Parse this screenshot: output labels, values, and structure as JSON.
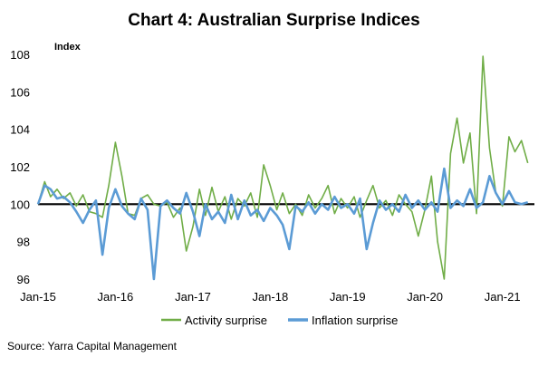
{
  "chart_data": {
    "type": "line",
    "title": "Chart 4: Australian Surprise Indices",
    "ylabel": "Index",
    "xlabel": "",
    "ylim": [
      96,
      108
    ],
    "yticks": [
      96,
      98,
      100,
      102,
      104,
      106,
      108
    ],
    "x_ticks": [
      "Jan-15",
      "Jan-16",
      "Jan-17",
      "Jan-18",
      "Jan-19",
      "Jan-20",
      "Jan-21"
    ],
    "x_range": [
      "Jan-15",
      "Jun-21"
    ],
    "grid": false,
    "reference_line": 100,
    "legend": "bottom",
    "series": [
      {
        "name": "Activity surprise",
        "color": "#70ad47",
        "points": [
          [
            "2015-01",
            100.0
          ],
          [
            "2015-02",
            101.2
          ],
          [
            "2015-03",
            100.4
          ],
          [
            "2015-04",
            100.8
          ],
          [
            "2015-05",
            100.3
          ],
          [
            "2015-06",
            100.6
          ],
          [
            "2015-07",
            99.9
          ],
          [
            "2015-08",
            100.5
          ],
          [
            "2015-09",
            99.6
          ],
          [
            "2015-10",
            99.5
          ],
          [
            "2015-11",
            99.3
          ],
          [
            "2015-12",
            101.0
          ],
          [
            "2016-01",
            103.3
          ],
          [
            "2016-02",
            101.5
          ],
          [
            "2016-03",
            99.5
          ],
          [
            "2016-04",
            99.4
          ],
          [
            "2016-05",
            100.3
          ],
          [
            "2016-06",
            100.5
          ],
          [
            "2016-07",
            100.0
          ],
          [
            "2016-08",
            99.9
          ],
          [
            "2016-09",
            100.1
          ],
          [
            "2016-10",
            99.3
          ],
          [
            "2016-11",
            99.8
          ],
          [
            "2016-12",
            97.5
          ],
          [
            "2017-01",
            98.8
          ],
          [
            "2017-02",
            100.8
          ],
          [
            "2017-03",
            99.4
          ],
          [
            "2017-04",
            100.9
          ],
          [
            "2017-05",
            99.6
          ],
          [
            "2017-06",
            100.4
          ],
          [
            "2017-07",
            99.2
          ],
          [
            "2017-08",
            100.3
          ],
          [
            "2017-09",
            99.9
          ],
          [
            "2017-10",
            100.6
          ],
          [
            "2017-11",
            99.3
          ],
          [
            "2017-12",
            102.1
          ],
          [
            "2018-01",
            101.0
          ],
          [
            "2018-02",
            99.7
          ],
          [
            "2018-03",
            100.6
          ],
          [
            "2018-04",
            99.5
          ],
          [
            "2018-05",
            100.0
          ],
          [
            "2018-06",
            99.4
          ],
          [
            "2018-07",
            100.5
          ],
          [
            "2018-08",
            99.8
          ],
          [
            "2018-09",
            100.3
          ],
          [
            "2018-10",
            101.0
          ],
          [
            "2018-11",
            99.5
          ],
          [
            "2018-12",
            100.3
          ],
          [
            "2019-01",
            99.8
          ],
          [
            "2019-02",
            100.4
          ],
          [
            "2019-03",
            99.3
          ],
          [
            "2019-04",
            100.2
          ],
          [
            "2019-05",
            101.0
          ],
          [
            "2019-06",
            99.8
          ],
          [
            "2019-07",
            100.2
          ],
          [
            "2019-08",
            99.4
          ],
          [
            "2019-09",
            100.5
          ],
          [
            "2019-10",
            100.0
          ],
          [
            "2019-11",
            99.6
          ],
          [
            "2019-12",
            98.3
          ],
          [
            "2020-01",
            99.7
          ],
          [
            "2020-02",
            101.5
          ],
          [
            "2020-03",
            98.0
          ],
          [
            "2020-04",
            96.0
          ],
          [
            "2020-05",
            102.7
          ],
          [
            "2020-06",
            104.6
          ],
          [
            "2020-07",
            102.2
          ],
          [
            "2020-08",
            103.8
          ],
          [
            "2020-09",
            99.5
          ],
          [
            "2020-10",
            107.9
          ],
          [
            "2020-11",
            103.0
          ],
          [
            "2020-12",
            100.6
          ],
          [
            "2021-01",
            99.9
          ],
          [
            "2021-02",
            103.6
          ],
          [
            "2021-03",
            102.8
          ],
          [
            "2021-04",
            103.4
          ],
          [
            "2021-05",
            102.2
          ]
        ]
      },
      {
        "name": "Inflation surprise",
        "color": "#5b9bd5",
        "points": [
          [
            "2015-01",
            100.0
          ],
          [
            "2015-02",
            101.0
          ],
          [
            "2015-03",
            100.8
          ],
          [
            "2015-04",
            100.3
          ],
          [
            "2015-05",
            100.4
          ],
          [
            "2015-06",
            100.1
          ],
          [
            "2015-07",
            99.6
          ],
          [
            "2015-08",
            99.0
          ],
          [
            "2015-09",
            99.7
          ],
          [
            "2015-10",
            100.2
          ],
          [
            "2015-11",
            97.3
          ],
          [
            "2015-12",
            99.8
          ],
          [
            "2016-01",
            100.8
          ],
          [
            "2016-02",
            99.9
          ],
          [
            "2016-03",
            99.5
          ],
          [
            "2016-04",
            99.2
          ],
          [
            "2016-05",
            100.3
          ],
          [
            "2016-06",
            99.7
          ],
          [
            "2016-07",
            96.0
          ],
          [
            "2016-08",
            99.9
          ],
          [
            "2016-09",
            100.2
          ],
          [
            "2016-10",
            99.8
          ],
          [
            "2016-11",
            99.5
          ],
          [
            "2016-12",
            100.6
          ],
          [
            "2017-01",
            99.6
          ],
          [
            "2017-02",
            98.3
          ],
          [
            "2017-03",
            100.0
          ],
          [
            "2017-04",
            99.2
          ],
          [
            "2017-05",
            99.6
          ],
          [
            "2017-06",
            99.0
          ],
          [
            "2017-07",
            100.5
          ],
          [
            "2017-08",
            99.2
          ],
          [
            "2017-09",
            100.2
          ],
          [
            "2017-10",
            99.4
          ],
          [
            "2017-11",
            99.7
          ],
          [
            "2017-12",
            99.1
          ],
          [
            "2018-01",
            99.8
          ],
          [
            "2018-02",
            99.4
          ],
          [
            "2018-03",
            98.9
          ],
          [
            "2018-04",
            97.6
          ],
          [
            "2018-05",
            99.9
          ],
          [
            "2018-06",
            99.6
          ],
          [
            "2018-07",
            100.1
          ],
          [
            "2018-08",
            99.5
          ],
          [
            "2018-09",
            100.0
          ],
          [
            "2018-10",
            99.7
          ],
          [
            "2018-11",
            100.4
          ],
          [
            "2018-12",
            99.8
          ],
          [
            "2019-01",
            100.0
          ],
          [
            "2019-02",
            99.5
          ],
          [
            "2019-03",
            100.3
          ],
          [
            "2019-04",
            97.6
          ],
          [
            "2019-05",
            99.0
          ],
          [
            "2019-06",
            100.2
          ],
          [
            "2019-07",
            99.7
          ],
          [
            "2019-08",
            100.0
          ],
          [
            "2019-09",
            99.6
          ],
          [
            "2019-10",
            100.5
          ],
          [
            "2019-11",
            99.8
          ],
          [
            "2019-12",
            100.2
          ],
          [
            "2020-01",
            99.7
          ],
          [
            "2020-02",
            100.1
          ],
          [
            "2020-03",
            99.6
          ],
          [
            "2020-04",
            101.9
          ],
          [
            "2020-05",
            99.8
          ],
          [
            "2020-06",
            100.2
          ],
          [
            "2020-07",
            99.9
          ],
          [
            "2020-08",
            100.8
          ],
          [
            "2020-09",
            99.8
          ],
          [
            "2020-10",
            100.1
          ],
          [
            "2020-11",
            101.5
          ],
          [
            "2020-12",
            100.6
          ],
          [
            "2021-01",
            100.0
          ],
          [
            "2021-02",
            100.7
          ],
          [
            "2021-03",
            100.1
          ],
          [
            "2021-04",
            100.0
          ],
          [
            "2021-05",
            100.1
          ]
        ]
      }
    ]
  },
  "source": "Source: Yarra Capital Management"
}
